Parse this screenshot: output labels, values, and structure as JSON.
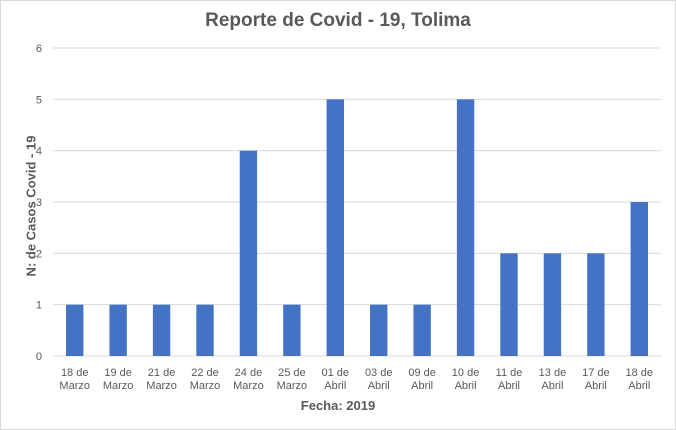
{
  "chart_data": {
    "type": "bar",
    "title": "Reporte de Covid - 19, Tolima",
    "xlabel": "Fecha: 2019",
    "ylabel": "N: de Casos Covid - 19",
    "ylim": [
      0,
      6
    ],
    "yticks": [
      "0",
      "1",
      "2",
      "3",
      "4",
      "5",
      "6"
    ],
    "grid": true,
    "legend": "none",
    "bar_color": "#4472c4",
    "categories": [
      [
        "18 de",
        "Marzo"
      ],
      [
        "19 de",
        "Marzo"
      ],
      [
        "21 de",
        "Marzo"
      ],
      [
        "22 de",
        "Marzo"
      ],
      [
        "24 de",
        "Marzo"
      ],
      [
        "25 de",
        "Marzo"
      ],
      [
        "01 de",
        "Abril"
      ],
      [
        "03 de",
        "Abril"
      ],
      [
        "09 de",
        "Abril"
      ],
      [
        "10 de",
        "Abril"
      ],
      [
        "11 de",
        "Abril"
      ],
      [
        "13 de",
        "Abril"
      ],
      [
        "17 de",
        "Abril"
      ],
      [
        "18 de",
        "Abril"
      ]
    ],
    "values": [
      1,
      1,
      1,
      1,
      4,
      1,
      5,
      1,
      1,
      5,
      2,
      2,
      2,
      3
    ]
  }
}
